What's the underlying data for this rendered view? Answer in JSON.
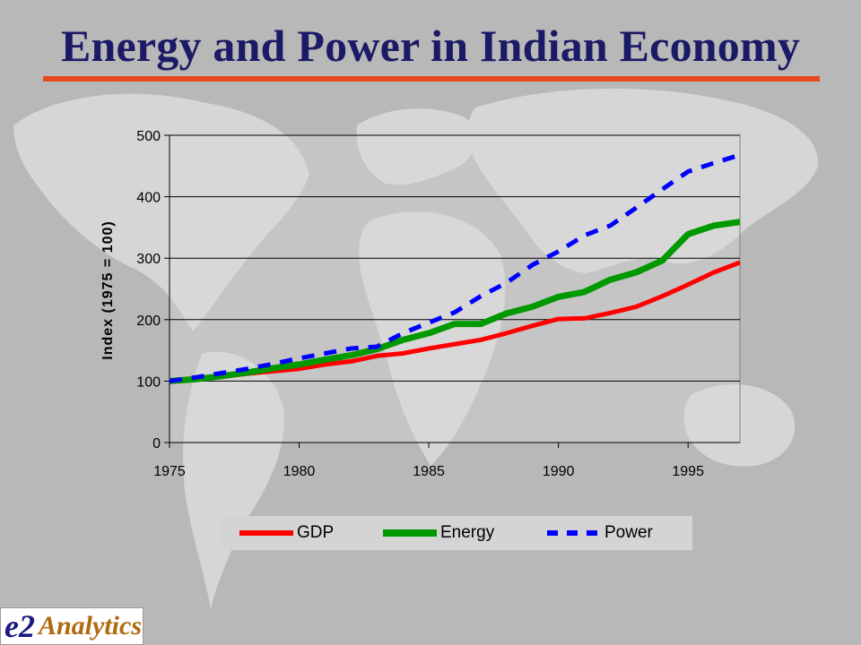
{
  "slide": {
    "title": "Energy and Power in Indian Economy",
    "accent_color": "#e8481c",
    "title_color": "#1a1a66"
  },
  "logo": {
    "mark": "e2",
    "word": "Analytics"
  },
  "chart_data": {
    "type": "line",
    "title": "",
    "xlabel": "",
    "ylabel": "Index (1975 = 100)",
    "xlim": [
      1975,
      1997
    ],
    "ylim": [
      0,
      500
    ],
    "x_ticks": [
      1975,
      1980,
      1985,
      1990,
      1995
    ],
    "y_ticks": [
      0,
      100,
      200,
      300,
      400,
      500
    ],
    "grid": "horizontal",
    "legend_position": "bottom",
    "x": [
      1975,
      1976,
      1977,
      1978,
      1979,
      1980,
      1981,
      1982,
      1983,
      1984,
      1985,
      1986,
      1987,
      1988,
      1989,
      1990,
      1991,
      1992,
      1993,
      1994,
      1995,
      1996,
      1997
    ],
    "series": [
      {
        "name": "GDP",
        "color": "#ff0000",
        "style": "solid",
        "values": [
          100,
          102,
          107,
          112,
          116,
          120,
          127,
          132,
          141,
          145,
          153,
          160,
          167,
          178,
          190,
          201,
          202,
          211,
          221,
          238,
          257,
          277,
          293
        ]
      },
      {
        "name": "Energy",
        "color": "#009900",
        "style": "solid",
        "values": [
          100,
          103,
          108,
          114,
          121,
          127,
          135,
          142,
          152,
          167,
          178,
          193,
          193,
          210,
          221,
          237,
          245,
          265,
          277,
          296,
          339,
          353,
          359
        ]
      },
      {
        "name": "Power",
        "color": "#0000ff",
        "style": "dashed",
        "values": [
          100,
          106,
          113,
          120,
          128,
          137,
          145,
          153,
          156,
          178,
          195,
          212,
          238,
          260,
          289,
          311,
          337,
          353,
          382,
          412,
          441,
          455,
          468
        ]
      }
    ]
  }
}
